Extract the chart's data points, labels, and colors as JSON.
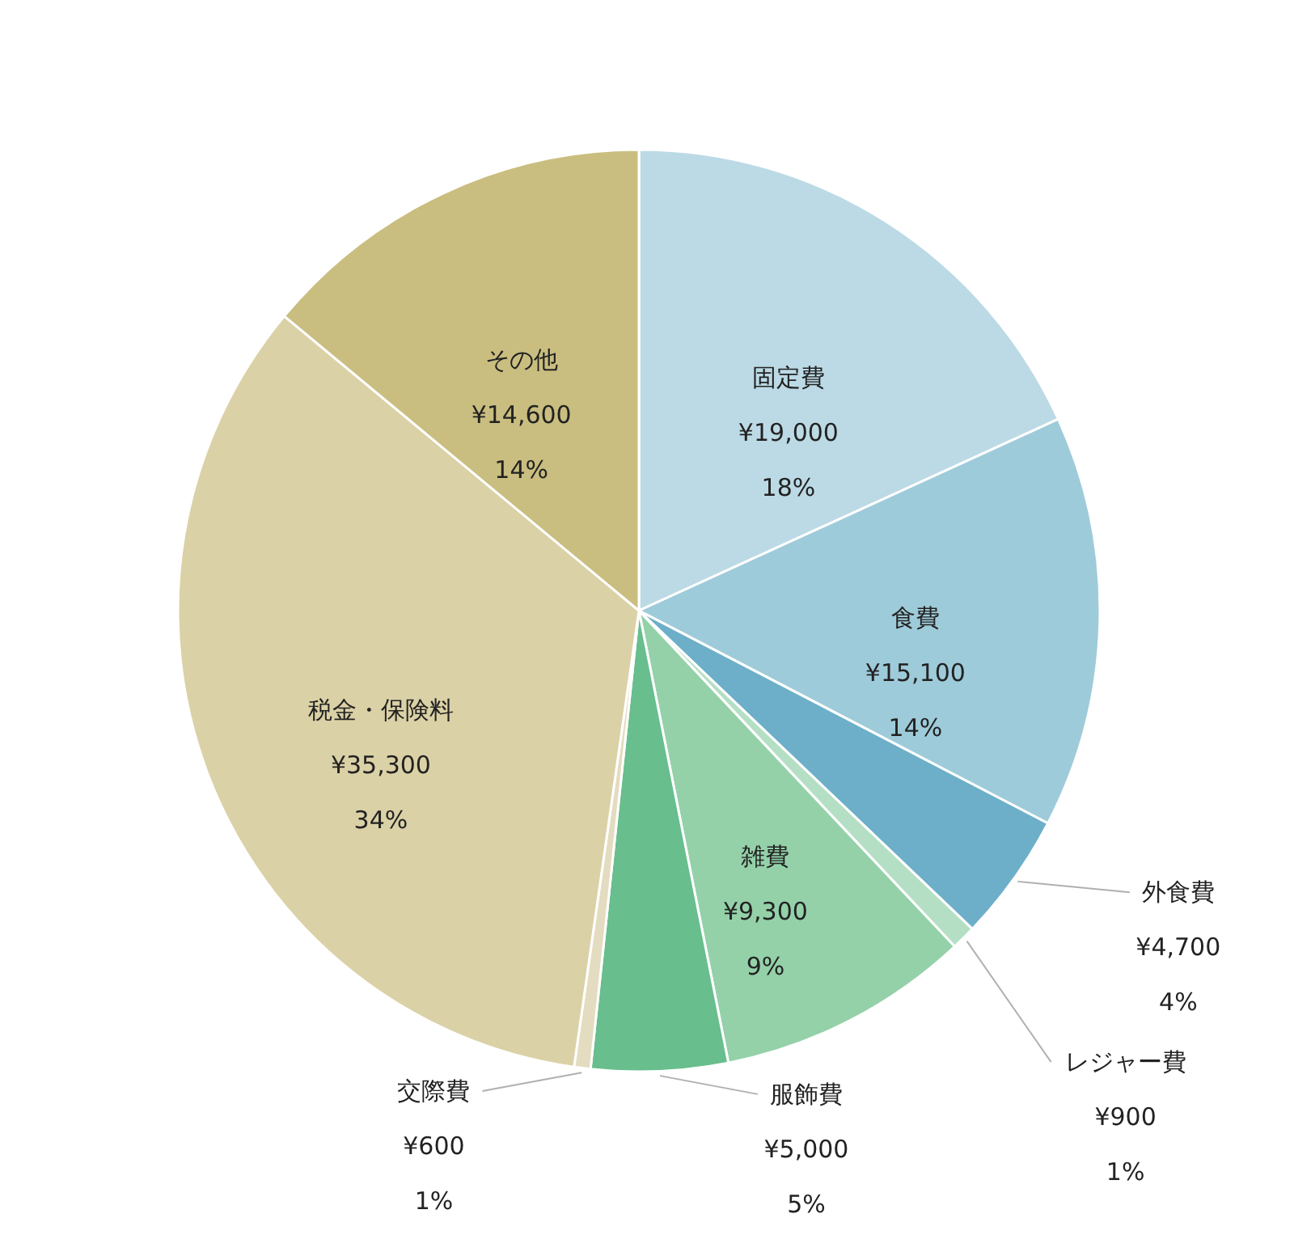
{
  "chart_data": {
    "type": "pie",
    "categories": [
      "固定費",
      "食費",
      "外食費",
      "レジャー費",
      "雑費",
      "服飾費",
      "交際費",
      "税金・保険料",
      "その他"
    ],
    "values": [
      19000,
      15100,
      4700,
      900,
      9300,
      5000,
      600,
      35300,
      14600
    ],
    "value_labels": [
      "¥19,000\n18%",
      "¥15,100\n14%",
      "¥4,700\n4%",
      "¥900\n1%",
      "¥9,300\n9%",
      "¥5,000\n5%",
      "¥600\n1%",
      "¥35,300\n34%",
      "¥14,600\n14%"
    ],
    "colors": [
      "#bcdae5",
      "#9ecbd9",
      "#6dafc9",
      "#b5dfc4",
      "#94d1a9",
      "#68be8d",
      "#e3dcc0",
      "#dbd1a6",
      "#c9be80"
    ],
    "legend": false
  }
}
